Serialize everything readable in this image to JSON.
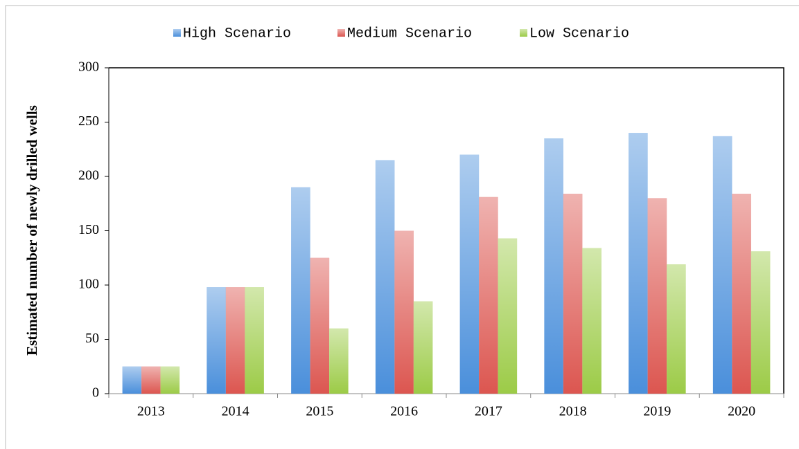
{
  "chart_data": {
    "type": "bar",
    "y_label": "Estimated number of newly drilled wells",
    "categories": [
      "2013",
      "2014",
      "2015",
      "2016",
      "2017",
      "2018",
      "2019",
      "2020"
    ],
    "series": [
      {
        "name": "High Scenario",
        "color": "#4a8fdb",
        "values": [
          25,
          98,
          190,
          215,
          220,
          235,
          240,
          237
        ]
      },
      {
        "name": "Medium Scenario",
        "color": "#dc5650",
        "values": [
          25,
          98,
          125,
          150,
          181,
          184,
          180,
          184
        ]
      },
      {
        "name": "Low Scenario",
        "color": "#9ccb47",
        "values": [
          25,
          98,
          60,
          85,
          143,
          134,
          119,
          131
        ]
      }
    ],
    "ylim": [
      0,
      300
    ],
    "yticks": [
      0,
      50,
      100,
      150,
      200,
      250,
      300
    ],
    "legend": "top"
  }
}
